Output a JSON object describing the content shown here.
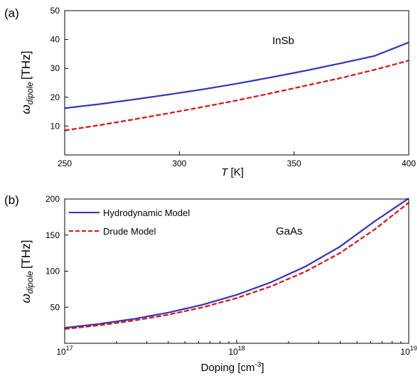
{
  "chart_data": [
    {
      "panel_label": "(a)",
      "type": "line",
      "annotation": "InSb",
      "xlabel_var": "T",
      "xlabel_unit": "[K]",
      "ylabel_sym": "ω",
      "ylabel_sub": "dipole",
      "ylabel_unit": "[THz]",
      "xlim": [
        250,
        400
      ],
      "ylim": [
        0,
        50
      ],
      "xscale": "linear",
      "grid": false,
      "x_ticks": [
        "250",
        "300",
        "350",
        "400"
      ],
      "y_ticks": [
        "10",
        "20",
        "30",
        "40",
        "50"
      ],
      "series": [
        {
          "color": "#3333bb",
          "dash": "solid",
          "x": [
            250,
            265,
            280,
            295,
            310,
            325,
            340,
            355,
            370,
            385,
            400
          ],
          "y": [
            16.2,
            17.6,
            19.2,
            20.9,
            22.7,
            24.7,
            26.9,
            29.2,
            31.7,
            34.3,
            39.0
          ]
        },
        {
          "color": "#dd1111",
          "dash": "dashed",
          "x": [
            250,
            265,
            280,
            295,
            310,
            325,
            340,
            355,
            370,
            385,
            400
          ],
          "y": [
            8.5,
            10.3,
            12.3,
            14.4,
            16.6,
            18.9,
            21.4,
            24.0,
            26.6,
            29.5,
            32.7
          ]
        }
      ]
    },
    {
      "panel_label": "(b)",
      "type": "line",
      "annotation": "GaAs",
      "xlabel_var": "Doping",
      "xlabel_unit": "[cm",
      "xlabel_sup": "-3",
      "xlabel_close": "]",
      "ylabel_sym": "ω",
      "ylabel_sub": "dipole",
      "ylabel_unit": "[THz]",
      "xlim": [
        1e+17,
        1e+19
      ],
      "ylim": [
        0,
        200
      ],
      "xscale": "log",
      "grid": false,
      "legend_position": "top-left",
      "x_ticks": [
        {
          "base": "10",
          "exp": "17"
        },
        {
          "base": "10",
          "exp": "18"
        },
        {
          "base": "10",
          "exp": "19"
        }
      ],
      "y_ticks": [
        "50",
        "100",
        "150",
        "200"
      ],
      "series": [
        {
          "name": "Hydrodynamic Model",
          "color": "#3333bb",
          "dash": "solid",
          "x": [
            1e+17,
            1.58e+17,
            2.51e+17,
            3.98e+17,
            6.31e+17,
            1e+18,
            1.58e+18,
            2.51e+18,
            3.98e+18,
            6.31e+18,
            1e+19
          ],
          "y": [
            21.5,
            26.8,
            33.7,
            42.4,
            53.4,
            67.2,
            84.6,
            106.5,
            134.0,
            168.8,
            201.0
          ]
        },
        {
          "name": "Drude Model",
          "color": "#dd1111",
          "dash": "dashed",
          "x": [
            1e+17,
            1.58e+17,
            2.51e+17,
            3.98e+17,
            6.31e+17,
            1e+18,
            1.58e+18,
            2.51e+18,
            3.98e+18,
            6.31e+18,
            1e+19
          ],
          "y": [
            19.8,
            24.9,
            31.4,
            39.5,
            49.8,
            62.7,
            78.9,
            99.4,
            125.1,
            157.5,
            195.0
          ]
        }
      ]
    }
  ]
}
